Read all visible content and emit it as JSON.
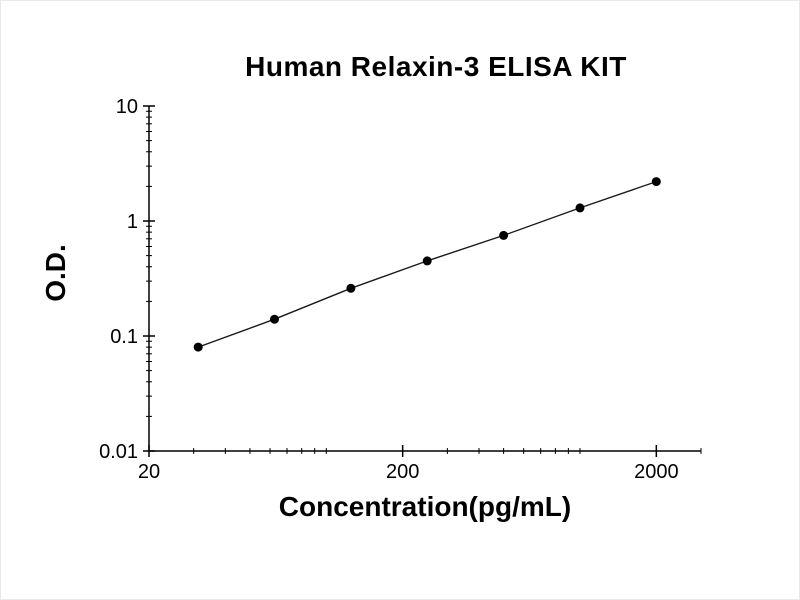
{
  "chart_data": {
    "type": "line",
    "title": "Human Relaxin-3 ELISA KIT",
    "xlabel": "Concentration(pg/mL)",
    "ylabel": "O.D.",
    "xscale": "log",
    "yscale": "log",
    "xlim": [
      20,
      3000
    ],
    "ylim": [
      0.01,
      10
    ],
    "x": [
      31.25,
      62.5,
      125,
      250,
      500,
      1000,
      2000
    ],
    "y": [
      0.08,
      0.14,
      0.26,
      0.45,
      0.75,
      1.3,
      2.2
    ],
    "x_ticks": [
      20,
      200,
      2000
    ],
    "x_tick_labels": [
      "20",
      "200",
      "2000"
    ],
    "y_ticks": [
      10,
      1,
      0.1,
      0.01
    ],
    "y_tick_labels": [
      "10",
      "1",
      "0.1",
      "0.01"
    ],
    "grid": false,
    "legend": false,
    "line_color": "#1a1a1a",
    "marker_color": "#000000",
    "axis_color": "#000000"
  }
}
